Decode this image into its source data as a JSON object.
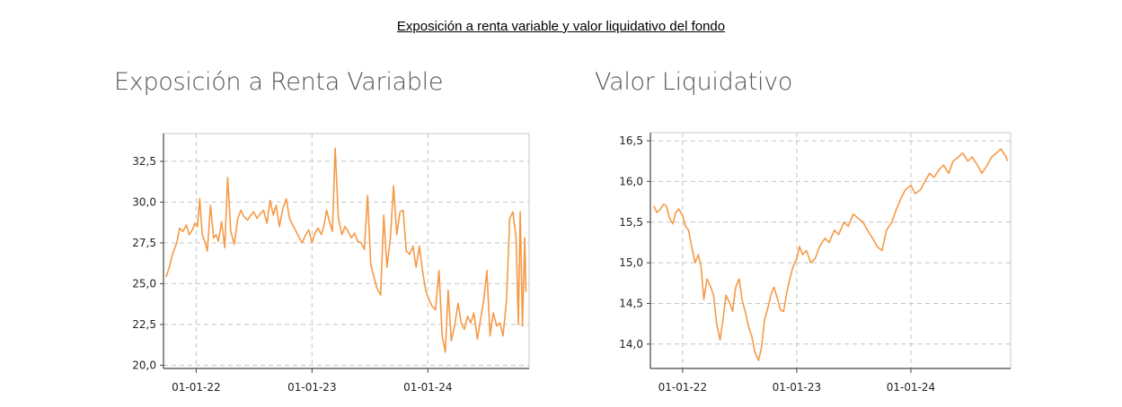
{
  "page": {
    "title": "Exposición a renta variable y valor liquidativo del fondo"
  },
  "chart_data": [
    {
      "type": "line",
      "title": "Exposición a Renta Variable",
      "xlabel": "",
      "ylabel": "",
      "color": "#F59A45",
      "grid": true,
      "xlim": [
        "2021-09-20",
        "2024-11-15"
      ],
      "ylim": [
        19.8,
        34.2
      ],
      "x_ticks": [
        "2022-01-01",
        "2023-01-01",
        "2024-01-01"
      ],
      "x_tick_labels": [
        "01-01-22",
        "01-01-23",
        "01-01-24"
      ],
      "y_ticks": [
        20.0,
        22.5,
        25.0,
        27.5,
        30.0,
        32.5
      ],
      "y_tick_labels": [
        "20,0",
        "22,5",
        "25,0",
        "27,5",
        "30,0",
        "32,5"
      ],
      "series": [
        {
          "x": [
            "2021-09-28",
            "2021-10-08",
            "2021-10-20",
            "2021-11-01",
            "2021-11-10",
            "2021-11-20",
            "2021-12-01",
            "2021-12-10",
            "2021-12-20",
            "2021-12-28",
            "2022-01-05",
            "2022-01-12",
            "2022-01-20",
            "2022-01-28",
            "2022-02-05",
            "2022-02-15",
            "2022-02-25",
            "2022-03-05",
            "2022-03-12",
            "2022-03-22",
            "2022-04-01",
            "2022-04-10",
            "2022-04-20",
            "2022-05-01",
            "2022-05-12",
            "2022-05-22",
            "2022-06-01",
            "2022-06-12",
            "2022-06-22",
            "2022-07-01",
            "2022-07-12",
            "2022-07-22",
            "2022-08-01",
            "2022-08-12",
            "2022-08-22",
            "2022-09-01",
            "2022-09-10",
            "2022-09-20",
            "2022-10-01",
            "2022-10-12",
            "2022-10-22",
            "2022-11-01",
            "2022-11-12",
            "2022-11-22",
            "2022-12-01",
            "2022-12-12",
            "2022-12-22",
            "2023-01-01",
            "2023-01-10",
            "2023-01-20",
            "2023-01-30",
            "2023-02-08",
            "2023-02-16",
            "2023-02-25",
            "2023-03-06",
            "2023-03-15",
            "2023-03-25",
            "2023-04-05",
            "2023-04-15",
            "2023-04-25",
            "2023-05-05",
            "2023-05-15",
            "2023-05-25",
            "2023-06-05",
            "2023-06-15",
            "2023-06-25",
            "2023-07-05",
            "2023-07-15",
            "2023-07-25",
            "2023-08-05",
            "2023-08-15",
            "2023-08-25",
            "2023-09-05",
            "2023-09-15",
            "2023-09-25",
            "2023-10-05",
            "2023-10-15",
            "2023-10-25",
            "2023-11-05",
            "2023-11-15",
            "2023-11-25",
            "2023-12-05",
            "2023-12-15",
            "2023-12-25",
            "2024-01-05",
            "2024-01-15",
            "2024-01-25",
            "2024-02-05",
            "2024-02-15",
            "2024-02-25",
            "2024-03-05",
            "2024-03-15",
            "2024-03-25",
            "2024-04-05",
            "2024-04-15",
            "2024-04-25",
            "2024-05-05",
            "2024-05-15",
            "2024-05-25",
            "2024-06-05",
            "2024-06-15",
            "2024-06-25",
            "2024-07-05",
            "2024-07-15",
            "2024-07-25",
            "2024-08-05",
            "2024-08-15",
            "2024-08-25",
            "2024-09-05",
            "2024-09-15",
            "2024-09-25",
            "2024-10-05",
            "2024-10-12",
            "2024-10-18",
            "2024-10-25",
            "2024-11-01",
            "2024-11-05"
          ],
          "values": [
            25.4,
            26.0,
            26.9,
            27.5,
            28.4,
            28.2,
            28.6,
            28.0,
            28.3,
            28.7,
            28.5,
            30.2,
            28.0,
            27.6,
            27.0,
            29.8,
            27.8,
            28.0,
            27.6,
            28.8,
            27.2,
            31.5,
            28.2,
            27.4,
            29.0,
            29.5,
            29.1,
            28.9,
            29.2,
            29.4,
            29.0,
            29.3,
            29.5,
            28.7,
            30.1,
            29.2,
            29.8,
            28.5,
            29.6,
            30.2,
            29.0,
            28.6,
            28.2,
            27.8,
            27.5,
            28.0,
            28.3,
            27.5,
            28.1,
            28.4,
            28.0,
            28.6,
            29.5,
            28.8,
            28.2,
            33.3,
            29.0,
            28.0,
            28.5,
            28.2,
            27.8,
            28.1,
            27.6,
            27.5,
            27.1,
            30.4,
            26.2,
            25.4,
            24.7,
            24.3,
            29.2,
            26.0,
            27.8,
            31.0,
            28.0,
            29.4,
            29.5,
            27.0,
            26.8,
            27.3,
            26.0,
            27.3,
            25.8,
            24.6,
            24.0,
            23.6,
            23.4,
            25.8,
            21.8,
            20.8,
            24.6,
            21.5,
            22.4,
            23.8,
            22.6,
            22.2,
            23.0,
            22.6,
            23.2,
            21.6,
            22.8,
            24.0,
            25.8,
            21.8,
            23.2,
            22.4,
            22.6,
            21.8,
            24.0,
            29.0,
            29.4,
            27.8,
            22.5,
            29.4,
            22.4,
            27.8,
            24.5
          ]
        }
      ]
    },
    {
      "type": "line",
      "title": "Valor Liquidativo",
      "xlabel": "",
      "ylabel": "",
      "color": "#F59A45",
      "grid": true,
      "xlim": [
        "2021-09-20",
        "2024-11-15"
      ],
      "ylim": [
        13.7,
        16.6
      ],
      "x_ticks": [
        "2022-01-01",
        "2023-01-01",
        "2024-01-01"
      ],
      "x_tick_labels": [
        "01-01-22",
        "01-01-23",
        "01-01-24"
      ],
      "y_ticks": [
        14.0,
        14.5,
        15.0,
        15.5,
        16.0,
        16.5
      ],
      "y_tick_labels": [
        "14,0",
        "14,5",
        "15,0",
        "15,5",
        "16,0",
        "16,5"
      ],
      "series": [
        {
          "x": [
            "2021-10-01",
            "2021-10-10",
            "2021-10-20",
            "2021-11-01",
            "2021-11-10",
            "2021-11-20",
            "2021-12-01",
            "2021-12-10",
            "2021-12-20",
            "2022-01-01",
            "2022-01-10",
            "2022-01-20",
            "2022-01-30",
            "2022-02-10",
            "2022-02-20",
            "2022-03-01",
            "2022-03-10",
            "2022-03-20",
            "2022-04-01",
            "2022-04-10",
            "2022-04-20",
            "2022-05-01",
            "2022-05-10",
            "2022-05-20",
            "2022-06-01",
            "2022-06-10",
            "2022-06-20",
            "2022-07-01",
            "2022-07-10",
            "2022-07-20",
            "2022-08-01",
            "2022-08-10",
            "2022-08-20",
            "2022-09-01",
            "2022-09-10",
            "2022-09-20",
            "2022-10-01",
            "2022-10-10",
            "2022-10-20",
            "2022-11-01",
            "2022-11-10",
            "2022-11-20",
            "2022-12-01",
            "2022-12-10",
            "2022-12-20",
            "2023-01-01",
            "2023-01-10",
            "2023-01-20",
            "2023-02-01",
            "2023-02-15",
            "2023-03-01",
            "2023-03-15",
            "2023-04-01",
            "2023-04-15",
            "2023-05-01",
            "2023-05-15",
            "2023-06-01",
            "2023-06-15",
            "2023-07-01",
            "2023-07-15",
            "2023-08-01",
            "2023-08-15",
            "2023-09-01",
            "2023-09-15",
            "2023-10-01",
            "2023-10-15",
            "2023-11-01",
            "2023-11-15",
            "2023-12-01",
            "2023-12-15",
            "2024-01-01",
            "2024-01-15",
            "2024-02-01",
            "2024-02-15",
            "2024-03-01",
            "2024-03-15",
            "2024-04-01",
            "2024-04-15",
            "2024-05-01",
            "2024-05-15",
            "2024-06-01",
            "2024-06-15",
            "2024-07-01",
            "2024-07-15",
            "2024-08-01",
            "2024-08-15",
            "2024-09-01",
            "2024-09-15",
            "2024-10-01",
            "2024-10-15",
            "2024-11-01",
            "2024-11-05"
          ],
          "values": [
            15.7,
            15.62,
            15.65,
            15.72,
            15.7,
            15.55,
            15.48,
            15.62,
            15.66,
            15.58,
            15.45,
            15.4,
            15.2,
            15.0,
            15.1,
            14.95,
            14.55,
            14.8,
            14.7,
            14.6,
            14.25,
            14.05,
            14.3,
            14.6,
            14.5,
            14.4,
            14.7,
            14.8,
            14.55,
            14.4,
            14.2,
            14.1,
            13.9,
            13.8,
            13.95,
            14.3,
            14.45,
            14.6,
            14.7,
            14.55,
            14.42,
            14.4,
            14.65,
            14.8,
            14.95,
            15.05,
            15.2,
            15.1,
            15.15,
            15.0,
            15.05,
            15.2,
            15.3,
            15.25,
            15.4,
            15.35,
            15.5,
            15.45,
            15.6,
            15.55,
            15.5,
            15.4,
            15.3,
            15.2,
            15.15,
            15.4,
            15.5,
            15.65,
            15.8,
            15.9,
            15.95,
            15.85,
            15.9,
            16.0,
            16.1,
            16.05,
            16.15,
            16.2,
            16.1,
            16.25,
            16.3,
            16.35,
            16.25,
            16.3,
            16.2,
            16.1,
            16.2,
            16.3,
            16.35,
            16.4,
            16.3,
            16.25
          ]
        }
      ]
    }
  ]
}
